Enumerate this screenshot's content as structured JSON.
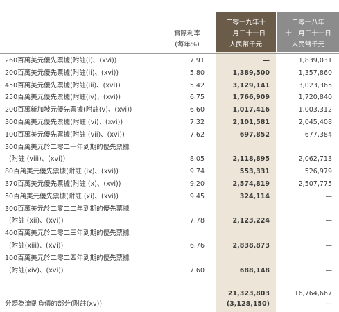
{
  "header": {
    "rate": [
      "實際利率",
      "(每年%)"
    ],
    "col2019": [
      "二零一九年十",
      "二月三十一日",
      "人民幣千元"
    ],
    "col2018": [
      "二零一八年",
      "十二月三十一日",
      "人民幣千元"
    ]
  },
  "rows": [
    {
      "label": "260百萬美元優先票據(附註(i)、(xvi))",
      "rate": "7.91",
      "v2019": "—",
      "v2018": "1,839,031"
    },
    {
      "label": "200百萬美元優先票據(附註(ii)、(xvi))",
      "rate": "5.80",
      "v2019": "1,389,500",
      "v2018": "1,357,860"
    },
    {
      "label": "450百萬美元優先票據(附註(iii)、(xvi))",
      "rate": "5.42",
      "v2019": "3,129,141",
      "v2018": "3,023,365"
    },
    {
      "label": "250百萬美元優先票據(附註(iv)、(xvi))",
      "rate": "6.75",
      "v2019": "1,766,909",
      "v2018": "1,720,840"
    },
    {
      "label": "200百萬新加坡元優先票據(附註(v)、(xvi))",
      "rate": "6.60",
      "v2019": "1,017,416",
      "v2018": "1,003,312"
    },
    {
      "label": "300百萬美元優先票據(附註 (vi)、(xvi))",
      "rate": "7.32",
      "v2019": "2,101,581",
      "v2018": "2,045,408"
    },
    {
      "label": "100百萬美元優先票據(附註 (vii)、(xvi))",
      "rate": "7.62",
      "v2019": "697,852",
      "v2018": "677,384"
    },
    {
      "label": "300百萬美元於二零二一年到期的優先票據",
      "rate": "",
      "v2019": "",
      "v2018": ""
    },
    {
      "label": "(附註 (viii)、(xvi))",
      "rate": "8.05",
      "v2019": "2,118,895",
      "v2018": "2,062,713",
      "indent": true
    },
    {
      "label": "80百萬美元優先票據(附註 (ix)、(xvi))",
      "rate": "9.74",
      "v2019": "553,331",
      "v2018": "526,979"
    },
    {
      "label": "370百萬美元優先票據(附註 (x)、(xvi))",
      "rate": "9.20",
      "v2019": "2,574,819",
      "v2018": "2,507,775"
    },
    {
      "label": "50百萬美元優先票據(附註 (xi)、(xvi))",
      "rate": "9.45",
      "v2019": "324,114",
      "v2018": "—"
    },
    {
      "label": "300百萬美元於二零二二年到期的優先票據",
      "rate": "",
      "v2019": "",
      "v2018": ""
    },
    {
      "label": "(附註 (xii)、(xvi))",
      "rate": "7.78",
      "v2019": "2,123,224",
      "v2018": "—",
      "indent": true
    },
    {
      "label": "400百萬美元於二零二三年到期的優先票據",
      "rate": "",
      "v2019": "",
      "v2018": ""
    },
    {
      "label": "(附註(xiii)、(xvi))",
      "rate": "6.76",
      "v2019": "2,838,873",
      "v2018": "—",
      "indent": true
    },
    {
      "label": "100百萬美元於二零二四年到期的優先票據",
      "rate": "",
      "v2019": "",
      "v2018": ""
    },
    {
      "label": "(附註(xiv)、(xvi))",
      "rate": "7.60",
      "v2019": "688,148",
      "v2018": "—",
      "indent": true
    }
  ],
  "total": {
    "v2019": "21,323,803",
    "v2018": "16,764,667"
  },
  "current": {
    "label": "分類為流動負債的部分(附註(xv))",
    "v2019": "(3,128,150)",
    "v2018": "—"
  }
}
